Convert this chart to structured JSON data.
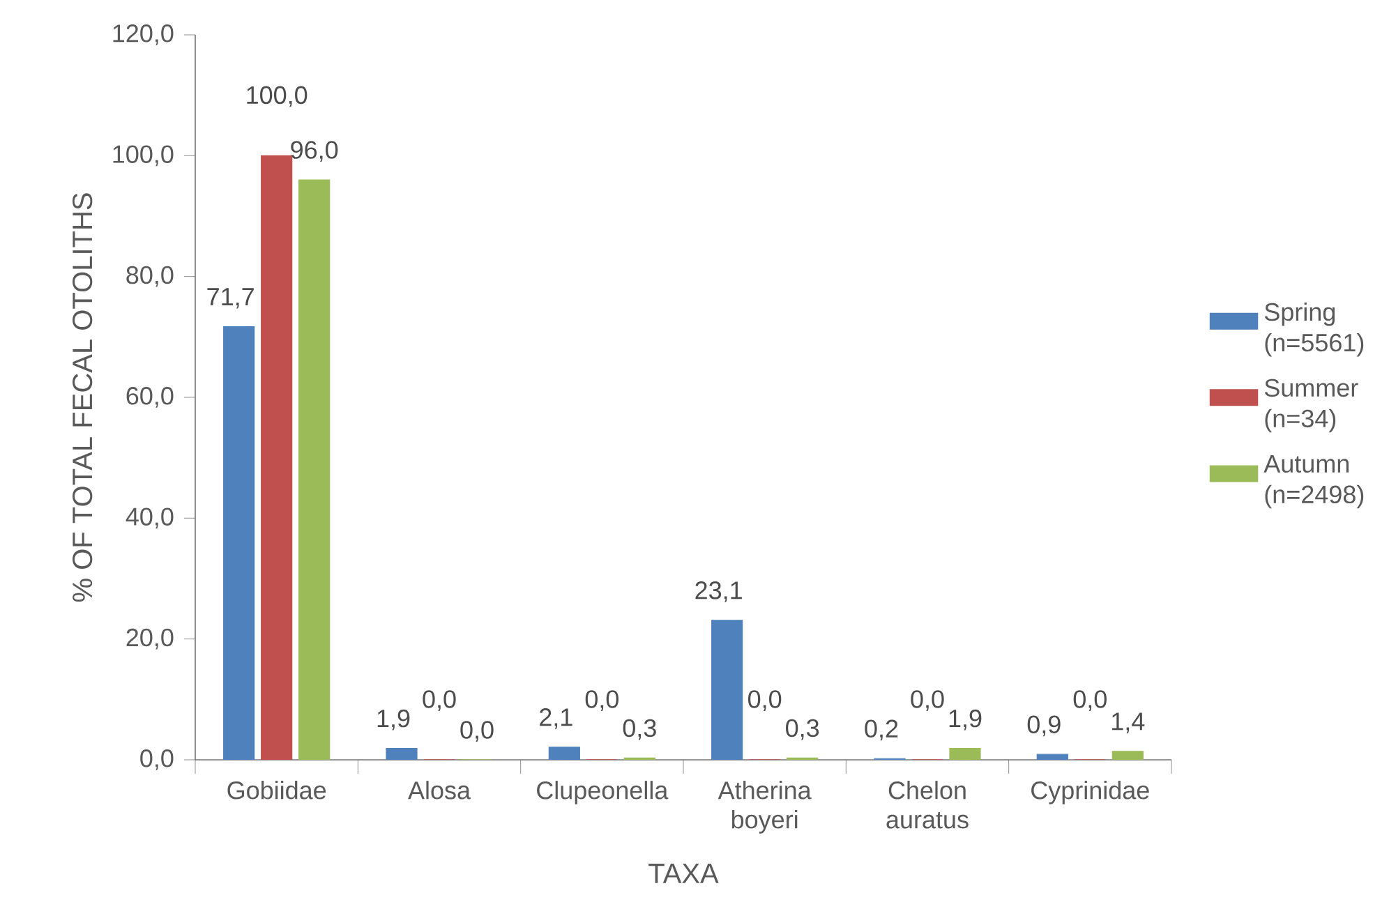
{
  "chart_data": {
    "type": "bar",
    "xlabel": "TAXA",
    "ylabel": "% OF TOTAL FECAL OTOLITHS",
    "categories": [
      "Gobiidae",
      "Alosa",
      "Clupeonella",
      "Atherina boyeri",
      "Chelon auratus",
      "Cyprinidae"
    ],
    "series": [
      {
        "name": "Spring (n=5561)",
        "color": "#4f81bd",
        "values": [
          71.7,
          1.9,
          2.1,
          23.1,
          0.2,
          0.9
        ],
        "value_labels": [
          "71,7",
          "1,9",
          "2,1",
          "23,1",
          "0,2",
          "0,9"
        ]
      },
      {
        "name": "Summer (n=34)",
        "color": "#c0504d",
        "values": [
          100.0,
          0.0,
          0.0,
          0.0,
          0.0,
          0.0
        ],
        "value_labels": [
          "100,0",
          "0,0",
          "0,0",
          "0,0",
          "0,0",
          "0,0"
        ]
      },
      {
        "name": "Autumn (n=2498)",
        "color": "#9bbb59",
        "values": [
          96.0,
          0.0,
          0.3,
          0.3,
          1.9,
          1.4
        ],
        "value_labels": [
          "96,0",
          "0,0",
          "0,3",
          "0,3",
          "1,9",
          "1,4"
        ]
      }
    ],
    "ylim": [
      0,
      120
    ],
    "yticks": [
      {
        "value": 0,
        "label": "0,0"
      },
      {
        "value": 20,
        "label": "20,0"
      },
      {
        "value": 40,
        "label": "40,0"
      },
      {
        "value": 60,
        "label": "60,0"
      },
      {
        "value": 80,
        "label": "80,0"
      },
      {
        "value": 100,
        "label": "100,0"
      },
      {
        "value": 120,
        "label": "120,0"
      }
    ],
    "grid": false,
    "legend": "right"
  }
}
